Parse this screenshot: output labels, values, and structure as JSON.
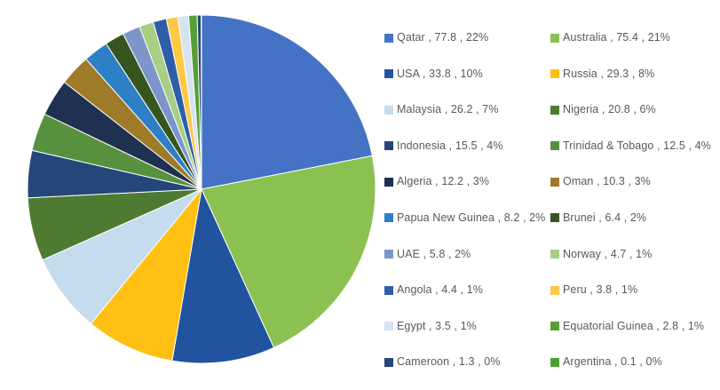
{
  "chart_data": {
    "type": "pie",
    "title": "",
    "legend_position": "right",
    "legend_columns": 2,
    "legend_separator": " , ",
    "start_angle_deg": -90,
    "direction": "clockwise",
    "slice_border_color": "#FFFFFF",
    "slices": [
      {
        "label": "Qatar",
        "value": 77.8,
        "pct": "22%",
        "color": "#4472C4"
      },
      {
        "label": "Australia",
        "value": 75.4,
        "pct": "21%",
        "color": "#8CC152"
      },
      {
        "label": "USA",
        "value": 33.8,
        "pct": "10%",
        "color": "#21539E"
      },
      {
        "label": "Russia",
        "value": 29.3,
        "pct": "8%",
        "color": "#FFC013"
      },
      {
        "label": "Malaysia",
        "value": 26.2,
        "pct": "7%",
        "color": "#C5DCEE"
      },
      {
        "label": "Nigeria",
        "value": 20.8,
        "pct": "6%",
        "color": "#4E7B31"
      },
      {
        "label": "Indonesia",
        "value": 15.5,
        "pct": "4%",
        "color": "#254679"
      },
      {
        "label": "Trinidad & Tobago",
        "value": 12.5,
        "pct": "4%",
        "color": "#579140"
      },
      {
        "label": "Algeria",
        "value": 12.2,
        "pct": "3%",
        "color": "#1F3150"
      },
      {
        "label": "Oman",
        "value": 10.3,
        "pct": "3%",
        "color": "#9E7B28"
      },
      {
        "label": "Papua New Guinea",
        "value": 8.2,
        "pct": "2%",
        "color": "#2E80C6"
      },
      {
        "label": "Brunei",
        "value": 6.4,
        "pct": "2%",
        "color": "#36551F"
      },
      {
        "label": "UAE",
        "value": 5.8,
        "pct": "2%",
        "color": "#7D96C9"
      },
      {
        "label": "Norway",
        "value": 4.7,
        "pct": "1%",
        "color": "#A7CF85"
      },
      {
        "label": "Angola",
        "value": 4.4,
        "pct": "1%",
        "color": "#2E5FA6"
      },
      {
        "label": "Peru",
        "value": 3.8,
        "pct": "1%",
        "color": "#FFC846"
      },
      {
        "label": "Egypt",
        "value": 3.5,
        "pct": "1%",
        "color": "#D5E3F3"
      },
      {
        "label": "Equatorial Guinea",
        "value": 2.8,
        "pct": "1%",
        "color": "#55A036"
      },
      {
        "label": "Cameroon",
        "value": 1.3,
        "pct": "0%",
        "color": "#24477F"
      },
      {
        "label": "Argentina",
        "value": 0.1,
        "pct": "0%",
        "color": "#4F9E33"
      }
    ]
  }
}
